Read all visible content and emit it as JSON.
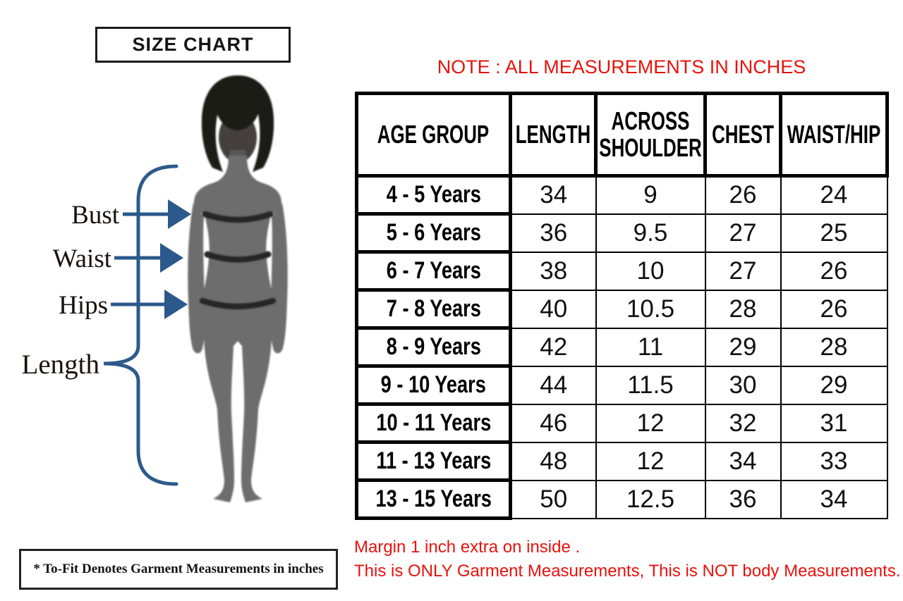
{
  "title_box": {
    "label": "SIZE CHART"
  },
  "figure": {
    "labels": {
      "bust": "Bust",
      "waist": "Waist",
      "hips": "Hips",
      "length": "Length"
    }
  },
  "footnote_box": {
    "text": "* To-Fit Denotes Garment Measurements in inches"
  },
  "note": {
    "text": "NOTE : ALL MEASUREMENTS IN INCHES"
  },
  "disclaimer": {
    "line1": "Margin 1 inch extra on inside .",
    "line2": "This is ONLY Garment Measurements, This is NOT body Measurements."
  },
  "colors": {
    "accent_red": "#e8120c",
    "diagram_blue": "#2d5a8b",
    "silhouette_gray": "#6d6d6d",
    "border_black": "#000000"
  },
  "chart_data": {
    "type": "table",
    "title": "SIZE CHART",
    "units": "inches",
    "headers": [
      "AGE GROUP",
      "LENGTH",
      "ACROSS SHOULDER",
      "CHEST",
      "WAIST/HIP"
    ],
    "rows": [
      [
        "4 - 5 Years",
        "34",
        "9",
        "26",
        "24"
      ],
      [
        "5 - 6 Years",
        "36",
        "9.5",
        "27",
        "25"
      ],
      [
        "6 - 7 Years",
        "38",
        "10",
        "27",
        "26"
      ],
      [
        "7 - 8 Years",
        "40",
        "10.5",
        "28",
        "26"
      ],
      [
        "8 - 9 Years",
        "42",
        "11",
        "29",
        "28"
      ],
      [
        "9 - 10 Years",
        "44",
        "11.5",
        "30",
        "29"
      ],
      [
        "10 - 11 Years",
        "46",
        "12",
        "32",
        "31"
      ],
      [
        "11 - 13 Years",
        "48",
        "12",
        "34",
        "33"
      ],
      [
        "13 - 15 Years",
        "50",
        "12.5",
        "36",
        "34"
      ]
    ]
  }
}
